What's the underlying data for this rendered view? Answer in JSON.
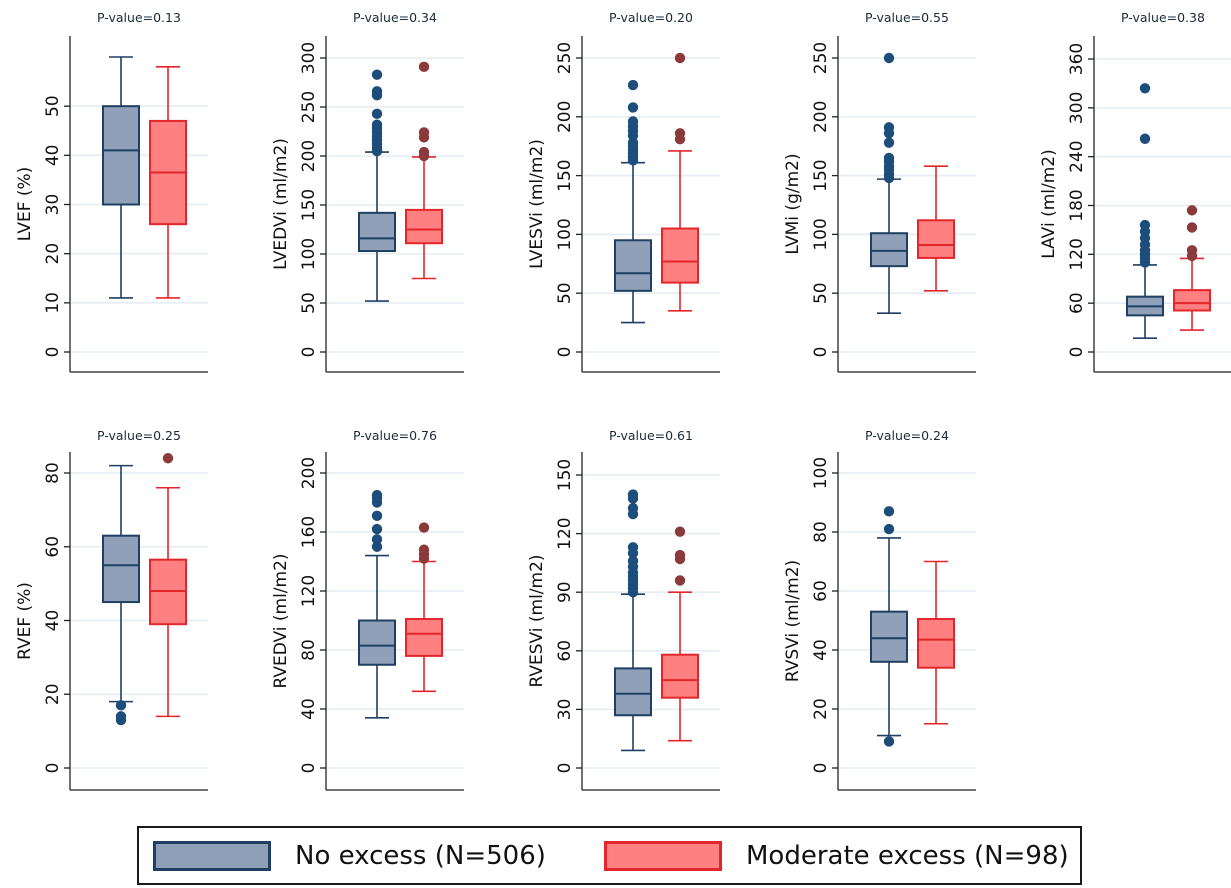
{
  "colors": {
    "no_excess_fill": "#8fa0b8",
    "no_excess_stroke": "#1f3f63",
    "no_excess_outlier": "#1d4d7a",
    "moderate_fill": "#ff8080",
    "moderate_stroke": "#e3262b",
    "moderate_outlier": "#8a3a3a",
    "grid": "#e4edf2"
  },
  "legend": {
    "items": [
      {
        "label": "No excess (N=506)",
        "color_key": "no_excess"
      },
      {
        "label": "Moderate excess (N=98)",
        "color_key": "moderate"
      }
    ]
  },
  "chart_data": [
    {
      "type": "box",
      "title": "P-value=0.13",
      "ylabel": "LVEF (%)",
      "ylim": [
        0,
        60
      ],
      "yticks": [
        0,
        10,
        20,
        30,
        40,
        50
      ],
      "grid": true,
      "series": [
        {
          "name": "No excess (N=506)",
          "whisker_low": 11,
          "q1": 30,
          "median": 41,
          "q3": 50,
          "whisker_high": 60,
          "outliers": []
        },
        {
          "name": "Moderate excess (N=98)",
          "whisker_low": 11,
          "q1": 26,
          "median": 36.5,
          "q3": 47,
          "whisker_high": 58,
          "outliers": []
        }
      ]
    },
    {
      "type": "box",
      "title": "P-value=0.34",
      "ylabel": "LVEDVi (ml/m2)",
      "ylim": [
        0,
        300
      ],
      "yticks": [
        0,
        50,
        100,
        150,
        200,
        250,
        300
      ],
      "grid": true,
      "series": [
        {
          "name": "No excess (N=506)",
          "whisker_low": 52,
          "q1": 103,
          "median": 116,
          "q3": 142,
          "whisker_high": 204,
          "outliers": [
            205,
            208,
            212,
            216,
            220,
            224,
            228,
            232,
            243,
            262,
            266,
            283
          ]
        },
        {
          "name": "Moderate excess (N=98)",
          "whisker_low": 75,
          "q1": 111,
          "median": 125,
          "q3": 145,
          "whisker_high": 199,
          "outliers": [
            200,
            204,
            219,
            224,
            291
          ]
        }
      ]
    },
    {
      "type": "box",
      "title": "P-value=0.20",
      "ylabel": "LVESVi (ml/m2)",
      "ylim": [
        0,
        250
      ],
      "yticks": [
        0,
        50,
        100,
        150,
        200,
        250
      ],
      "grid": true,
      "series": [
        {
          "name": "No excess (N=506)",
          "whisker_low": 25,
          "q1": 52,
          "median": 67,
          "q3": 95,
          "whisker_high": 161,
          "outliers": [
            163,
            166,
            169,
            172,
            175,
            178,
            184,
            188,
            192,
            196,
            208,
            227
          ]
        },
        {
          "name": "Moderate excess (N=98)",
          "whisker_low": 35,
          "q1": 59,
          "median": 77,
          "q3": 105,
          "whisker_high": 171,
          "outliers": [
            181,
            186,
            250
          ]
        }
      ]
    },
    {
      "type": "box",
      "title": "P-value=0.55",
      "ylabel": "LVMi (g/m2)",
      "ylim": [
        0,
        250
      ],
      "yticks": [
        0,
        50,
        100,
        150,
        200,
        250
      ],
      "grid": true,
      "series": [
        {
          "name": "No excess (N=506)",
          "whisker_low": 33,
          "q1": 73,
          "median": 86,
          "q3": 101,
          "whisker_high": 147,
          "outliers": [
            148,
            151,
            155,
            158,
            162,
            165,
            178,
            186,
            191,
            250
          ]
        },
        {
          "name": "Moderate excess (N=98)",
          "whisker_low": 52,
          "q1": 80,
          "median": 91,
          "q3": 112,
          "whisker_high": 158,
          "outliers": []
        }
      ]
    },
    {
      "type": "box",
      "title": "P-value=0.38",
      "ylabel": "LAVi (ml/m2)",
      "ylim": [
        0,
        360
      ],
      "yticks": [
        0,
        60,
        120,
        180,
        240,
        300,
        360
      ],
      "grid": true,
      "series": [
        {
          "name": "No excess (N=506)",
          "whisker_low": 17,
          "q1": 45,
          "median": 56,
          "q3": 68,
          "whisker_high": 107,
          "outliers": [
            110,
            115,
            120,
            125,
            132,
            140,
            148,
            156,
            262,
            324
          ]
        },
        {
          "name": "Moderate excess (N=98)",
          "whisker_low": 27,
          "q1": 51,
          "median": 60,
          "q3": 76,
          "whisker_high": 115,
          "outliers": [
            118,
            125,
            153,
            174
          ]
        }
      ]
    },
    {
      "type": "box",
      "title": "P-value=0.25",
      "ylabel": "RVEF (%)",
      "ylim": [
        0,
        80
      ],
      "yticks": [
        0,
        20,
        40,
        60,
        80
      ],
      "grid": true,
      "series": [
        {
          "name": "No excess (N=506)",
          "whisker_low": 18,
          "q1": 45,
          "median": 55,
          "q3": 63,
          "whisker_high": 82,
          "outliers": [
            17,
            14,
            13
          ]
        },
        {
          "name": "Moderate excess (N=98)",
          "whisker_low": 14,
          "q1": 39,
          "median": 48,
          "q3": 56.5,
          "whisker_high": 76,
          "outliers": [
            84
          ]
        }
      ]
    },
    {
      "type": "box",
      "title": "P-value=0.76",
      "ylabel": "RVEDVi (ml/m2)",
      "ylim": [
        0,
        200
      ],
      "yticks": [
        0,
        40,
        80,
        120,
        160,
        200
      ],
      "grid": true,
      "series": [
        {
          "name": "No excess (N=506)",
          "whisker_low": 34,
          "q1": 70,
          "median": 83,
          "q3": 100,
          "whisker_high": 144,
          "outliers": [
            150,
            155,
            162,
            171,
            180,
            183,
            185
          ]
        },
        {
          "name": "Moderate excess (N=98)",
          "whisker_low": 52,
          "q1": 76,
          "median": 91,
          "q3": 101,
          "whisker_high": 140,
          "outliers": [
            142,
            145,
            148,
            163
          ]
        }
      ]
    },
    {
      "type": "box",
      "title": "P-value=0.61",
      "ylabel": "RVESVi (ml/m2)",
      "ylim": [
        0,
        150
      ],
      "yticks": [
        0,
        30,
        60,
        90,
        120,
        150
      ],
      "grid": true,
      "series": [
        {
          "name": "No excess (N=506)",
          "whisker_low": 9,
          "q1": 27,
          "median": 38,
          "q3": 51,
          "whisker_high": 89,
          "outliers": [
            90,
            92,
            94,
            96,
            98,
            100,
            103,
            106,
            110,
            113,
            130,
            133,
            138,
            140
          ]
        },
        {
          "name": "Moderate excess (N=98)",
          "whisker_low": 14,
          "q1": 36,
          "median": 45,
          "q3": 58,
          "whisker_high": 90,
          "outliers": [
            96,
            107,
            109,
            121
          ]
        }
      ]
    },
    {
      "type": "box",
      "title": "P-value=0.24",
      "ylabel": "RVSVi (ml/m2)",
      "ylim": [
        0,
        100
      ],
      "yticks": [
        0,
        20,
        40,
        60,
        80,
        100
      ],
      "grid": true,
      "series": [
        {
          "name": "No excess (N=506)",
          "whisker_low": 11,
          "q1": 36,
          "median": 44,
          "q3": 53,
          "whisker_high": 78,
          "outliers": [
            9,
            81,
            87
          ]
        },
        {
          "name": "Moderate excess (N=98)",
          "whisker_low": 15,
          "q1": 34,
          "median": 43.5,
          "q3": 50.5,
          "whisker_high": 70,
          "outliers": []
        }
      ]
    }
  ]
}
